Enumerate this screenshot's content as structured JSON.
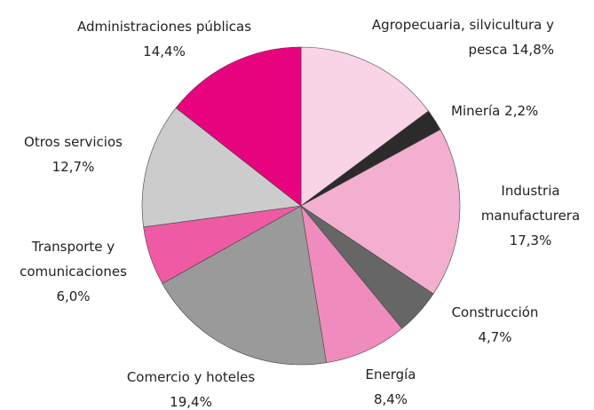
{
  "chart_data": {
    "type": "pie",
    "categories": [
      "Agropecuaria, silvicultura y pesca",
      "Minería",
      "Industria manufacturera",
      "Construcción",
      "Energía",
      "Comercio y hoteles",
      "Transporte y comunicaciones",
      "Otros servicios",
      "Administraciones públicas"
    ],
    "values": [
      14.8,
      2.2,
      17.3,
      4.7,
      8.4,
      19.4,
      6.0,
      12.7,
      14.4
    ],
    "value_labels": [
      "14,8%",
      "2,2%",
      "17,3%",
      "4,7%",
      "8,4%",
      "19,4%",
      "6,0%",
      "12,7%",
      "14,4%"
    ],
    "colors": [
      "#f9d3e6",
      "#2b2b2b",
      "#f2afd0",
      "#666666",
      "#f08cbd",
      "#9a9a9a",
      "#ee5ba4",
      "#cccccc",
      "#e8037f"
    ]
  }
}
